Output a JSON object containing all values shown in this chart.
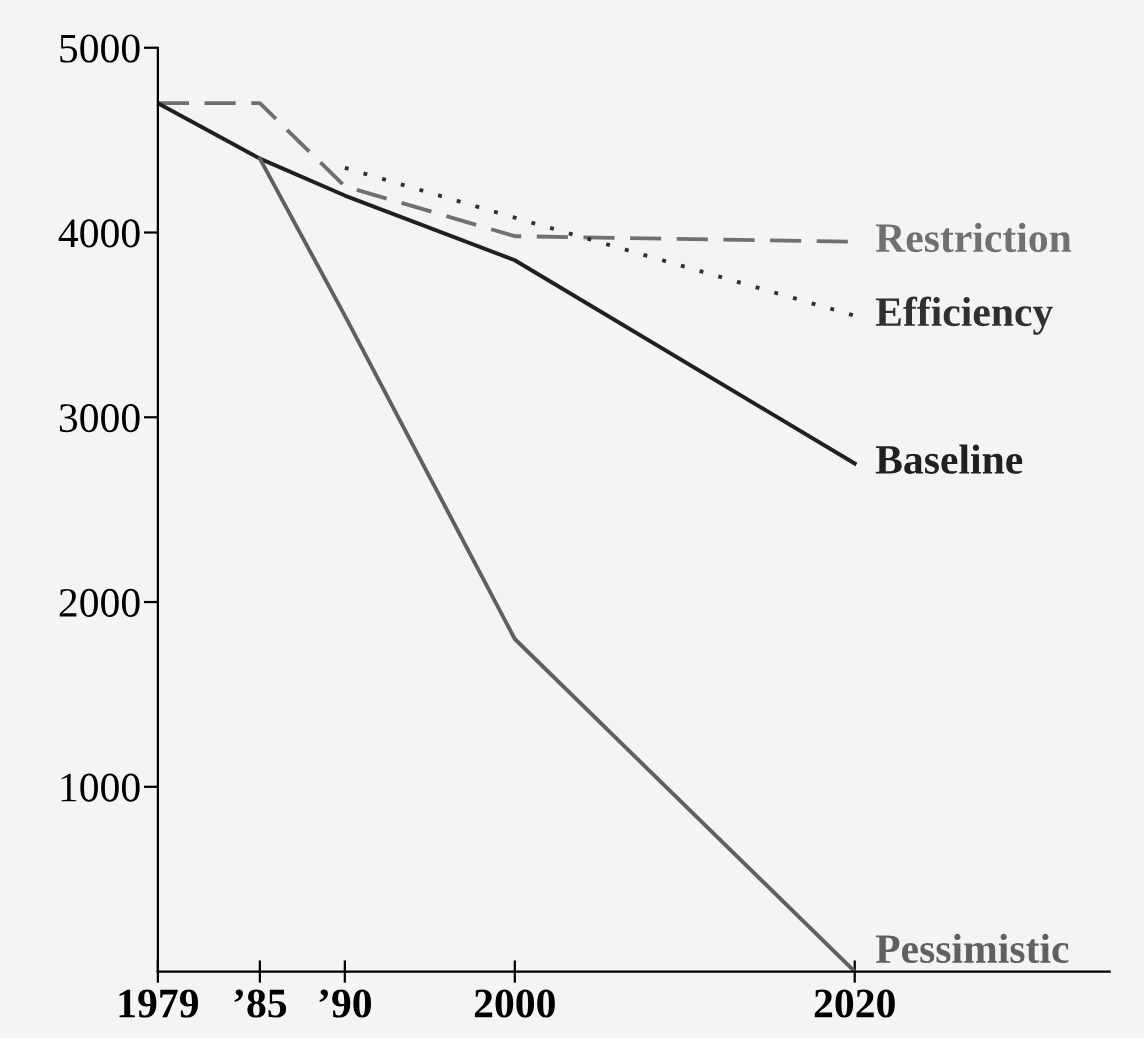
{
  "chart_data": {
    "type": "line",
    "x": [
      1979,
      1985,
      1990,
      2000,
      2020
    ],
    "series": [
      {
        "name": "Restriction",
        "color": "#707070",
        "line_style": "dashed",
        "values": [
          4700,
          4700,
          4250,
          3980,
          3950
        ]
      },
      {
        "name": "Efficiency",
        "color": "#303030",
        "line_style": "dotted",
        "values": [
          null,
          null,
          4350,
          4080,
          3550
        ]
      },
      {
        "name": "Baseline",
        "color": "#202020",
        "line_style": "solid",
        "values": [
          4700,
          4400,
          4200,
          3850,
          2750
        ]
      },
      {
        "name": "Pessimistic",
        "color": "#606060",
        "line_style": "solid",
        "values": [
          null,
          4400,
          3550,
          1800,
          0
        ]
      }
    ],
    "xlim": [
      1979,
      2035
    ],
    "ylim": [
      0,
      5000
    ],
    "xticks": [
      1979,
      {
        "value": 1985,
        "label": "’85"
      },
      {
        "value": 1990,
        "label": "’90"
      },
      2000,
      2020
    ],
    "yticks": [
      1000,
      2000,
      3000,
      4000,
      5000
    ],
    "grid": false,
    "legend": false,
    "marker": "none"
  }
}
